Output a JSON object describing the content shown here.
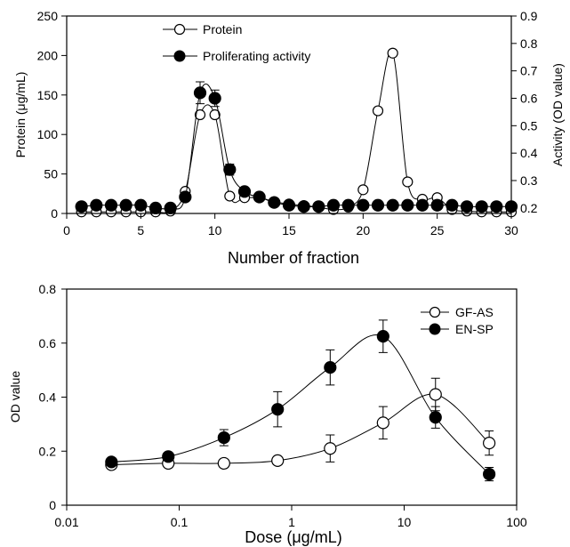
{
  "chart_data": [
    {
      "type": "line",
      "xlabel": "Number of fraction",
      "ylabel_left": "Protein (μg/mL)",
      "ylabel_right": "Activity (OD value)",
      "xlim": [
        0,
        30
      ],
      "ylim_left": [
        0,
        250
      ],
      "ylim_right": [
        0.18,
        0.9
      ],
      "x_ticks": [
        0,
        5,
        10,
        15,
        20,
        25,
        30
      ],
      "y_ticks_left": [
        0,
        50,
        100,
        150,
        200,
        250
      ],
      "y_ticks_right": [
        0.2,
        0.3,
        0.4,
        0.5,
        0.6,
        0.7,
        0.8,
        0.9
      ],
      "legend_position": "top-center",
      "series": [
        {
          "name": "Protein",
          "axis": "left",
          "marker": "open-circle",
          "x": [
            1,
            2,
            3,
            4,
            5,
            6,
            7,
            8,
            9,
            10,
            11,
            12,
            13,
            14,
            15,
            16,
            17,
            18,
            19,
            20,
            21,
            22,
            23,
            24,
            25,
            26,
            27,
            28,
            29,
            30
          ],
          "y": [
            2,
            2,
            2,
            2,
            2,
            2,
            3,
            28,
            125,
            125,
            22,
            20,
            20,
            15,
            12,
            10,
            8,
            5,
            8,
            30,
            130,
            203,
            40,
            18,
            20,
            5,
            3,
            2,
            2,
            2
          ]
        },
        {
          "name": "Proliferating activity",
          "axis": "right",
          "marker": "filled-circle",
          "error_bars": true,
          "x": [
            1,
            2,
            3,
            4,
            5,
            6,
            7,
            8,
            9,
            10,
            11,
            12,
            13,
            14,
            15,
            16,
            17,
            18,
            19,
            20,
            21,
            22,
            23,
            24,
            25,
            26,
            27,
            28,
            29,
            30
          ],
          "y": [
            0.205,
            0.21,
            0.21,
            0.21,
            0.21,
            0.2,
            0.2,
            0.24,
            0.62,
            0.6,
            0.34,
            0.26,
            0.24,
            0.22,
            0.21,
            0.205,
            0.205,
            0.21,
            0.21,
            0.21,
            0.21,
            0.21,
            0.21,
            0.21,
            0.21,
            0.21,
            0.205,
            0.205,
            0.205,
            0.205
          ],
          "err": [
            0,
            0,
            0,
            0,
            0,
            0,
            0,
            0,
            0.04,
            0.03,
            0.02,
            0,
            0,
            0,
            0,
            0,
            0,
            0,
            0,
            0,
            0,
            0,
            0,
            0,
            0,
            0,
            0,
            0,
            0,
            0
          ]
        }
      ]
    },
    {
      "type": "line",
      "xlabel": "Dose (μg/mL)",
      "ylabel": "OD value",
      "x_scale": "log",
      "xlim": [
        0.01,
        100
      ],
      "ylim": [
        0,
        0.8
      ],
      "x_ticks": [
        0.01,
        0.1,
        1,
        10,
        100
      ],
      "x_tick_labels": [
        "0.01",
        "0.1",
        "1",
        "10",
        "100"
      ],
      "y_ticks": [
        0,
        0.2,
        0.4,
        0.6,
        0.8
      ],
      "y_tick_labels": [
        "0",
        "0.2",
        "0.4",
        "0.6",
        "0.8"
      ],
      "legend_position": "top-right",
      "series": [
        {
          "name": "GF-AS",
          "marker": "open-circle",
          "x": [
            0.025,
            0.08,
            0.25,
            0.75,
            2.2,
            6.5,
            19,
            57
          ],
          "y": [
            0.15,
            0.155,
            0.155,
            0.165,
            0.21,
            0.305,
            0.41,
            0.23
          ],
          "err": [
            0.01,
            0.01,
            0.01,
            0.015,
            0.05,
            0.06,
            0.06,
            0.045
          ]
        },
        {
          "name": "EN-SP",
          "marker": "filled-circle",
          "x": [
            0.025,
            0.08,
            0.25,
            0.75,
            2.2,
            6.5,
            19,
            57
          ],
          "y": [
            0.16,
            0.18,
            0.25,
            0.355,
            0.51,
            0.625,
            0.325,
            0.115
          ],
          "err": [
            0.01,
            0.01,
            0.03,
            0.065,
            0.065,
            0.06,
            0.04,
            0.025
          ]
        }
      ]
    }
  ]
}
